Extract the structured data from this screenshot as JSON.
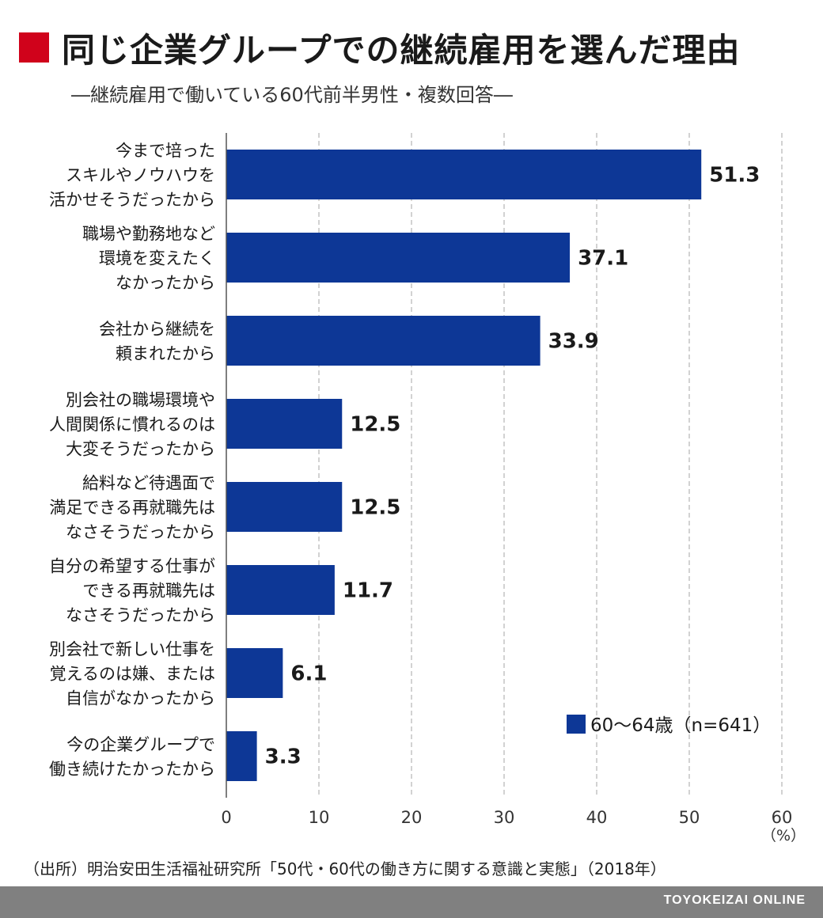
{
  "title": "同じ企業グループでの継続雇用を選んだ理由",
  "subtitle": "―継続雇用で働いている60代前半男性・複数回答―",
  "source": "（出所）明治安田生活福祉研究所「50代・60代の働き方に関する意識と実態」（2018年）",
  "brand": "TOYOKEIZAI ONLINE",
  "colors": {
    "bar": "#0d3796",
    "accent": "#d0021b",
    "footer": "#808080"
  },
  "chart_data": {
    "type": "bar",
    "orientation": "horizontal",
    "categories": [
      [
        "今まで培った",
        "スキルやノウハウを",
        "活かせそうだったから"
      ],
      [
        "職場や勤務地など",
        "環境を変えたく",
        "なかったから"
      ],
      [
        "会社から継続を",
        "頼まれたから"
      ],
      [
        "別会社の職場環境や",
        "人間関係に慣れるのは",
        "大変そうだったから"
      ],
      [
        "給料など待遇面で",
        "満足できる再就職先は",
        "なさそうだったから"
      ],
      [
        "自分の希望する仕事が",
        "できる再就職先は",
        "なさそうだったから"
      ],
      [
        "別会社で新しい仕事を",
        "覚えるのは嫌、または",
        "自信がなかったから"
      ],
      [
        "今の企業グループで",
        "働き続けたかったから"
      ]
    ],
    "series": [
      {
        "name": "60〜64歳（n=641）",
        "values": [
          51.3,
          37.1,
          33.9,
          12.5,
          12.5,
          11.7,
          6.1,
          3.3
        ]
      }
    ],
    "value_labels": [
      "51.3",
      "37.1",
      "33.9",
      "12.5",
      "12.5",
      "11.7",
      "6.1",
      "3.3"
    ],
    "xlim": [
      0,
      60
    ],
    "xticks": [
      "0",
      "10",
      "20",
      "30",
      "40",
      "50",
      "60"
    ],
    "xunit": "（%）",
    "grid": "vertical dashed",
    "legend_position": "bottom-right"
  }
}
